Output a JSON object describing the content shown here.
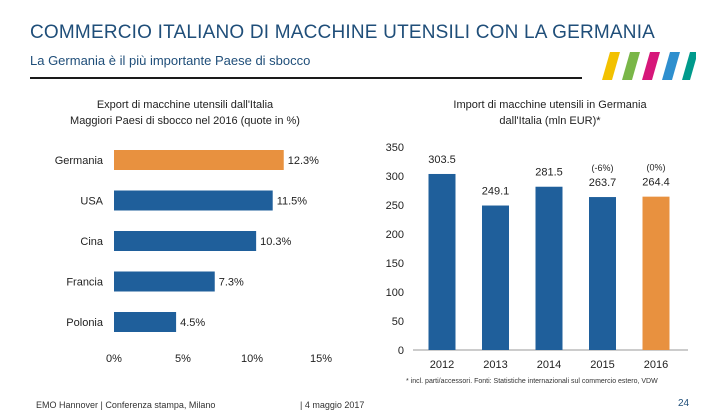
{
  "header": {
    "title": "COMMERCIO ITALIANO DI MACCHINE UTENSILI CON LA GERMANIA",
    "subtitle": "La Germania è il più importante Paese di sbocco"
  },
  "brand": {
    "stripe_colors": [
      "#f2c100",
      "#7ab648",
      "#d6177a",
      "#2e8fce",
      "#009a8c"
    ]
  },
  "colors": {
    "blue": "#1f5f9b",
    "orange": "#e8913f"
  },
  "chart_data": [
    {
      "type": "bar",
      "orientation": "horizontal",
      "title_lines": [
        "Export di macchine utensili dall'Italia",
        "Maggiori Paesi di sbocco nel 2016 (quote in %)"
      ],
      "categories": [
        "Germania",
        "USA",
        "Cina",
        "Francia",
        "Polonia"
      ],
      "values": [
        12.3,
        11.5,
        10.3,
        7.3,
        4.5
      ],
      "value_labels": [
        "12.3%",
        "11.5%",
        "10.3%",
        "7.3%",
        "4.5%"
      ],
      "highlight": "Germania",
      "xlim": [
        0,
        15
      ],
      "xticks": [
        0,
        5,
        10,
        15
      ],
      "xtick_labels": [
        "0%",
        "5%",
        "10%",
        "15%"
      ]
    },
    {
      "type": "bar",
      "title_lines": [
        "Import di macchine utensili in Germania",
        "dall'Italia (mln EUR)*"
      ],
      "categories": [
        "2012",
        "2013",
        "2014",
        "2015",
        "2016"
      ],
      "values": [
        303.5,
        249.1,
        281.5,
        263.7,
        264.4
      ],
      "value_labels": [
        "303.5",
        "249.1",
        "281.5",
        "263.7",
        "264.4"
      ],
      "change_labels": [
        "",
        "",
        "",
        "(-6%)",
        "(0%)"
      ],
      "highlight": "2016",
      "ylim": [
        0,
        350
      ],
      "yticks": [
        0,
        50,
        100,
        150,
        200,
        250,
        300,
        350
      ]
    }
  ],
  "footnote": "* incl. parti/accessori. Fonti: Statistiche internazionali sul commercio estero, VDW",
  "footer": {
    "left": "EMO Hannover | Conferenza stampa, Milano",
    "mid": "| 4 maggio 2017",
    "page": "24"
  }
}
